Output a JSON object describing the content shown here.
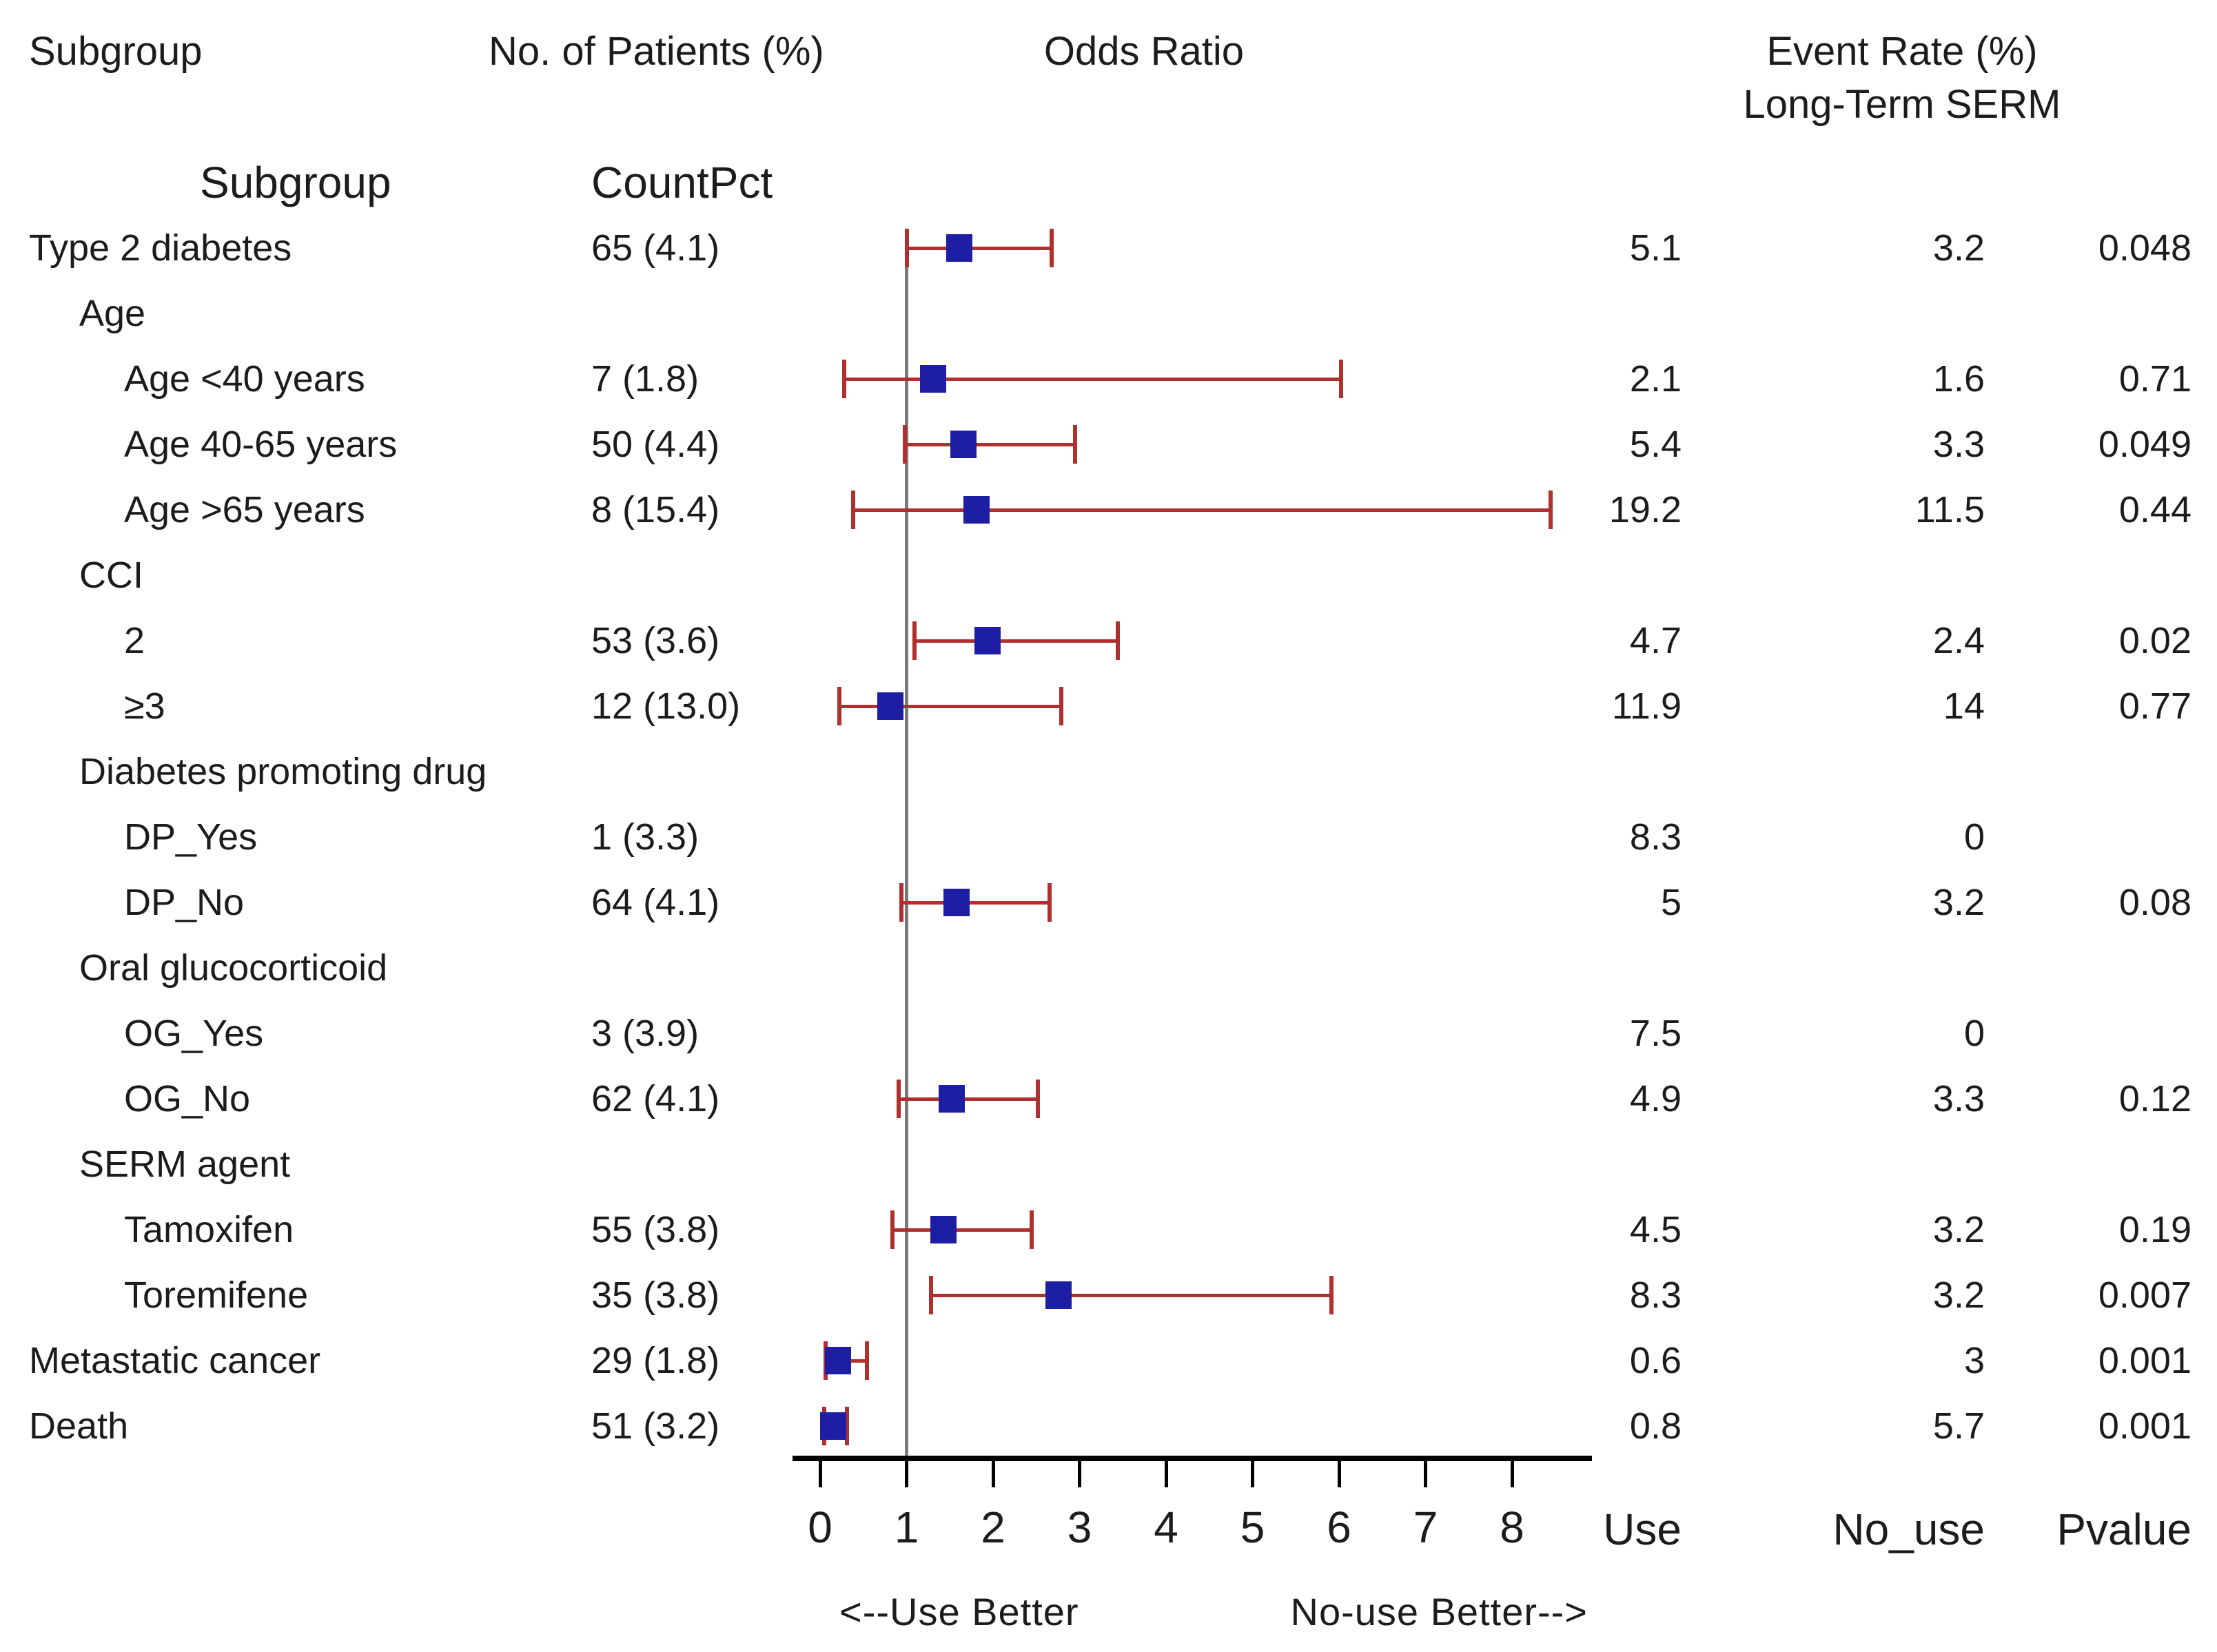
{
  "header": {
    "col_subgroup": "Subgroup",
    "col_patients": "No. of Patients (%)",
    "col_odds_ratio": "Odds Ratio",
    "col_event_rate_line1": "Event Rate (%)",
    "col_event_rate_line2": "Long-Term SERM",
    "table_subgroup": "Subgroup",
    "table_countpct": "CountPct"
  },
  "footer": {
    "col_use": "Use",
    "col_no_use": "No_use",
    "col_pvalue": "Pvalue",
    "arrow_left": "<--Use Better",
    "arrow_right": "No-use Better-->"
  },
  "colors": {
    "marker": "#1e1ea5",
    "ci": "#b03030",
    "reference_line": "#7a7a7a",
    "axis": "#000000",
    "text": "#1c1c1c"
  },
  "chart_data": {
    "type": "scatter",
    "variant": "forest-plot",
    "title": "Odds Ratio",
    "xlabel": "",
    "ylabel": "",
    "x_range": [
      0,
      8.9
    ],
    "x_ticks": [
      "0",
      "1",
      "2",
      "3",
      "4",
      "5",
      "6",
      "7",
      "8"
    ],
    "reference_line_x": 1,
    "grid": false,
    "legend_position": "none",
    "direction_note_left": "<--Use Better",
    "direction_note_right": "No-use Better-->",
    "rows": [
      {
        "label": "Type 2 diabetes",
        "indent": 0,
        "count_pct": "65 (4.1)",
        "or": 1.61,
        "ci_low": 1.0,
        "ci_high": 2.68,
        "use": "5.1",
        "no_use": "3.2",
        "pvalue": "0.048"
      },
      {
        "label": "Age",
        "indent": 1,
        "count_pct": "",
        "or": null,
        "ci_low": null,
        "ci_high": null,
        "use": "",
        "no_use": "",
        "pvalue": ""
      },
      {
        "label": "Age <40 years",
        "indent": 2,
        "count_pct": "7 (1.8)",
        "or": 1.31,
        "ci_low": 0.28,
        "ci_high": 6.02,
        "use": "2.1",
        "no_use": "1.6",
        "pvalue": "0.71"
      },
      {
        "label": "Age 40-65 years",
        "indent": 2,
        "count_pct": "50 (4.4)",
        "or": 1.66,
        "ci_low": 0.98,
        "ci_high": 2.95,
        "use": "5.4",
        "no_use": "3.3",
        "pvalue": "0.049"
      },
      {
        "label": "Age >65 years",
        "indent": 2,
        "count_pct": "8 (15.4)",
        "or": 1.81,
        "ci_low": 0.38,
        "ci_high": 8.45,
        "use": "19.2",
        "no_use": "11.5",
        "pvalue": "0.44"
      },
      {
        "label": "CCI",
        "indent": 1,
        "count_pct": "",
        "or": null,
        "ci_low": null,
        "ci_high": null,
        "use": "",
        "no_use": "",
        "pvalue": ""
      },
      {
        "label": "2",
        "indent": 2,
        "count_pct": "53 (3.6)",
        "or": 1.94,
        "ci_low": 1.09,
        "ci_high": 3.44,
        "use": "4.7",
        "no_use": "2.4",
        "pvalue": "0.02"
      },
      {
        "label": "≥3",
        "indent": 2,
        "count_pct": "12 (13.0)",
        "or": 0.81,
        "ci_low": 0.22,
        "ci_high": 2.79,
        "use": "11.9",
        "no_use": "14",
        "pvalue": "0.77"
      },
      {
        "label": "Diabetes promoting drug",
        "indent": 1,
        "count_pct": "",
        "or": null,
        "ci_low": null,
        "ci_high": null,
        "use": "",
        "no_use": "",
        "pvalue": ""
      },
      {
        "label": "DP_Yes",
        "indent": 2,
        "count_pct": "1 (3.3)",
        "or": null,
        "ci_low": null,
        "ci_high": null,
        "use": "8.3",
        "no_use": "0",
        "pvalue": ""
      },
      {
        "label": "DP_No",
        "indent": 2,
        "count_pct": "64 (4.1)",
        "or": 1.58,
        "ci_low": 0.94,
        "ci_high": 2.65,
        "use": "5",
        "no_use": "3.2",
        "pvalue": "0.08"
      },
      {
        "label": "Oral glucocorticoid",
        "indent": 1,
        "count_pct": "",
        "or": null,
        "ci_low": null,
        "ci_high": null,
        "use": "",
        "no_use": "",
        "pvalue": ""
      },
      {
        "label": "OG_Yes",
        "indent": 2,
        "count_pct": "3 (3.9)",
        "or": null,
        "ci_low": null,
        "ci_high": null,
        "use": "7.5",
        "no_use": "0",
        "pvalue": ""
      },
      {
        "label": "OG_No",
        "indent": 2,
        "count_pct": "62 (4.1)",
        "or": 1.52,
        "ci_low": 0.91,
        "ci_high": 2.52,
        "use": "4.9",
        "no_use": "3.3",
        "pvalue": "0.12"
      },
      {
        "label": "SERM agent",
        "indent": 1,
        "count_pct": "",
        "or": null,
        "ci_low": null,
        "ci_high": null,
        "use": "",
        "no_use": "",
        "pvalue": ""
      },
      {
        "label": "Tamoxifen",
        "indent": 2,
        "count_pct": "55 (3.8)",
        "or": 1.43,
        "ci_low": 0.84,
        "ci_high": 2.45,
        "use": "4.5",
        "no_use": "3.2",
        "pvalue": "0.19"
      },
      {
        "label": "Toremifene",
        "indent": 2,
        "count_pct": "35 (3.8)",
        "or": 2.76,
        "ci_low": 1.28,
        "ci_high": 5.91,
        "use": "8.3",
        "no_use": "3.2",
        "pvalue": "0.007"
      },
      {
        "label": "Metastatic cancer",
        "indent": 0,
        "count_pct": "29 (1.8)",
        "or": 0.21,
        "ci_low": 0.06,
        "ci_high": 0.54,
        "use": "0.6",
        "no_use": "3",
        "pvalue": "0.001"
      },
      {
        "label": "Death",
        "indent": 0,
        "count_pct": "51 (3.2)",
        "or": 0.15,
        "ci_low": 0.05,
        "ci_high": 0.31,
        "use": "0.8",
        "no_use": "5.7",
        "pvalue": "0.001"
      }
    ]
  }
}
